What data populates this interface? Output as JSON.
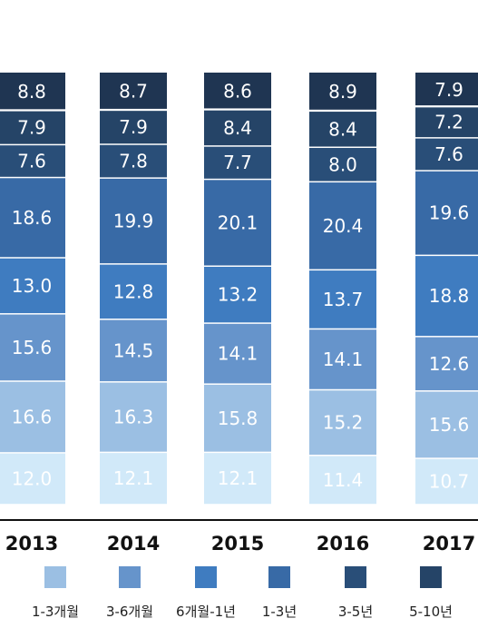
{
  "chart_data": {
    "type": "bar",
    "stacked": true,
    "categories": [
      "2013",
      "2014",
      "2015",
      "2016",
      "2017"
    ],
    "series": [
      {
        "name": "1-3개월",
        "values": [
          16.6,
          16.3,
          15.8,
          15.2,
          15.6
        ],
        "color": "#9bbfe3",
        "label_color": "#ffffff"
      },
      {
        "name": "3-6개월",
        "values": [
          15.6,
          14.5,
          14.1,
          14.1,
          12.6
        ],
        "color": "#6694cb",
        "label_color": "#ffffff"
      },
      {
        "name": "6개월-1년",
        "values": [
          13.0,
          12.8,
          13.2,
          13.7,
          18.8
        ],
        "color": "#3f7cc0",
        "label_color": "#ffffff"
      },
      {
        "name": "1-3년",
        "values": [
          18.6,
          19.9,
          20.1,
          20.4,
          19.6
        ],
        "color": "#386aa6",
        "label_color": "#ffffff"
      },
      {
        "name": "3-5년",
        "values": [
          7.6,
          7.8,
          7.7,
          8.0,
          7.6
        ],
        "color": "#294e78",
        "label_color": "#ffffff"
      },
      {
        "name": "5-10년",
        "values": [
          7.9,
          7.9,
          8.4,
          8.4,
          7.2
        ],
        "color": "#254467",
        "label_color": "#ffffff"
      },
      {
        "name": "",
        "values": [
          8.8,
          8.7,
          8.6,
          8.9,
          7.9
        ],
        "color": "#1f3552",
        "label_color": "#ffffff"
      }
    ],
    "base_series": {
      "values": [
        12.0,
        12.1,
        12.1,
        11.4,
        10.7
      ],
      "color": "#d1e9f9",
      "label_color": "#ffffff"
    },
    "legend_placement": "bottom",
    "grid": false
  }
}
